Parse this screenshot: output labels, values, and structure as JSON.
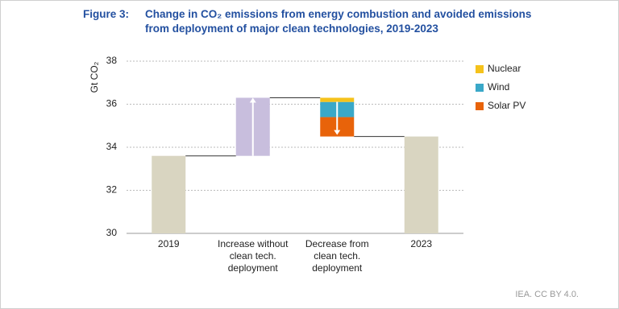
{
  "chart_data": {
    "type": "waterfall",
    "figure_label": "Figure 3:",
    "title": [
      "Change in CO₂ emissions from energy combustion and avoided emissions",
      "from deployment of major clean technologies, 2019-2023"
    ],
    "y_label": "Gt CO₂",
    "source": "IEA. CC BY 4.0.",
    "categories": [
      "2019",
      "Increase without clean tech. deployment",
      "Decrease from clean tech. deployment",
      "2023"
    ],
    "totals": {
      "color": "#d9d5c1",
      "values": [
        33.6,
        null,
        null,
        34.5
      ]
    },
    "increase": {
      "color": "#c8bedd",
      "values": [
        null,
        2.7,
        null,
        null
      ]
    },
    "series": [
      {
        "name": "Nuclear",
        "color": "#f5c21b",
        "values": [
          null,
          null,
          -0.2,
          null
        ]
      },
      {
        "name": "Wind",
        "color": "#3aa8c8",
        "values": [
          null,
          null,
          -0.7,
          null
        ]
      },
      {
        "name": "Solar PV",
        "color": "#e8630a",
        "values": [
          null,
          null,
          -0.9,
          null
        ]
      }
    ],
    "ylim": [
      30,
      38
    ],
    "yticks": [
      30,
      32,
      34,
      36,
      38
    ],
    "grid": true,
    "legend": "right"
  }
}
